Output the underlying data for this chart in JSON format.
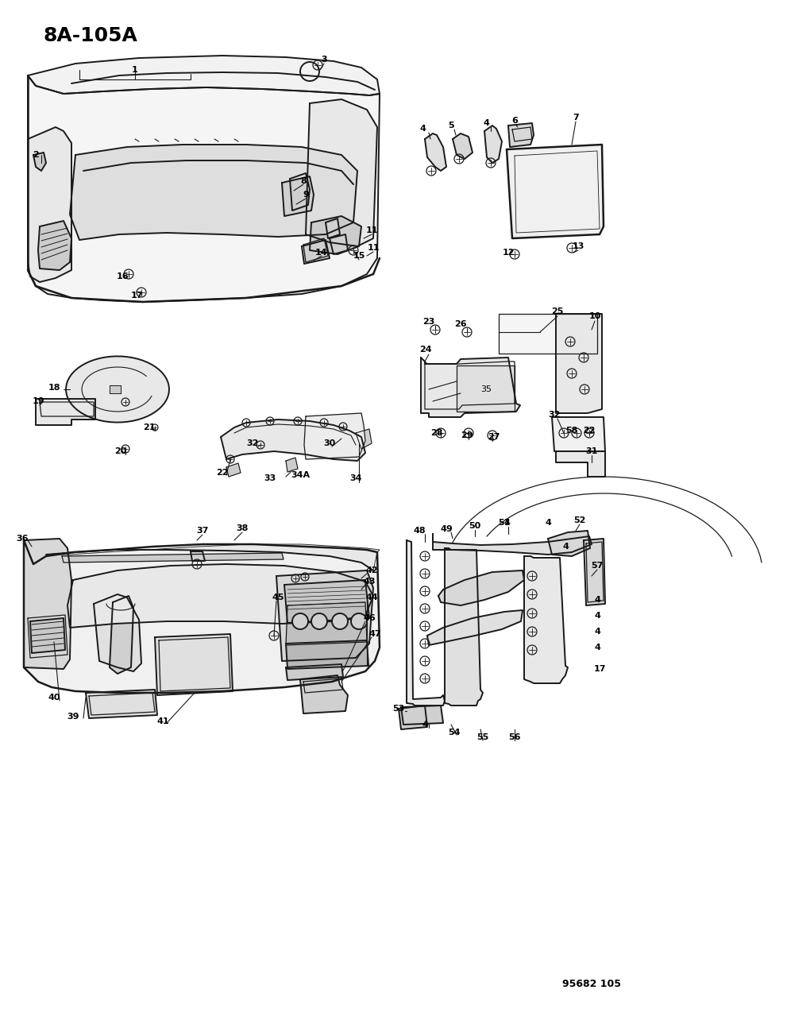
{
  "title": "8A-105A",
  "footer": "95682 105",
  "background_color": "#ffffff",
  "line_color": "#1a1a1a",
  "text_color": "#000000",
  "figsize": [
    9.91,
    12.75
  ],
  "dpi": 100
}
